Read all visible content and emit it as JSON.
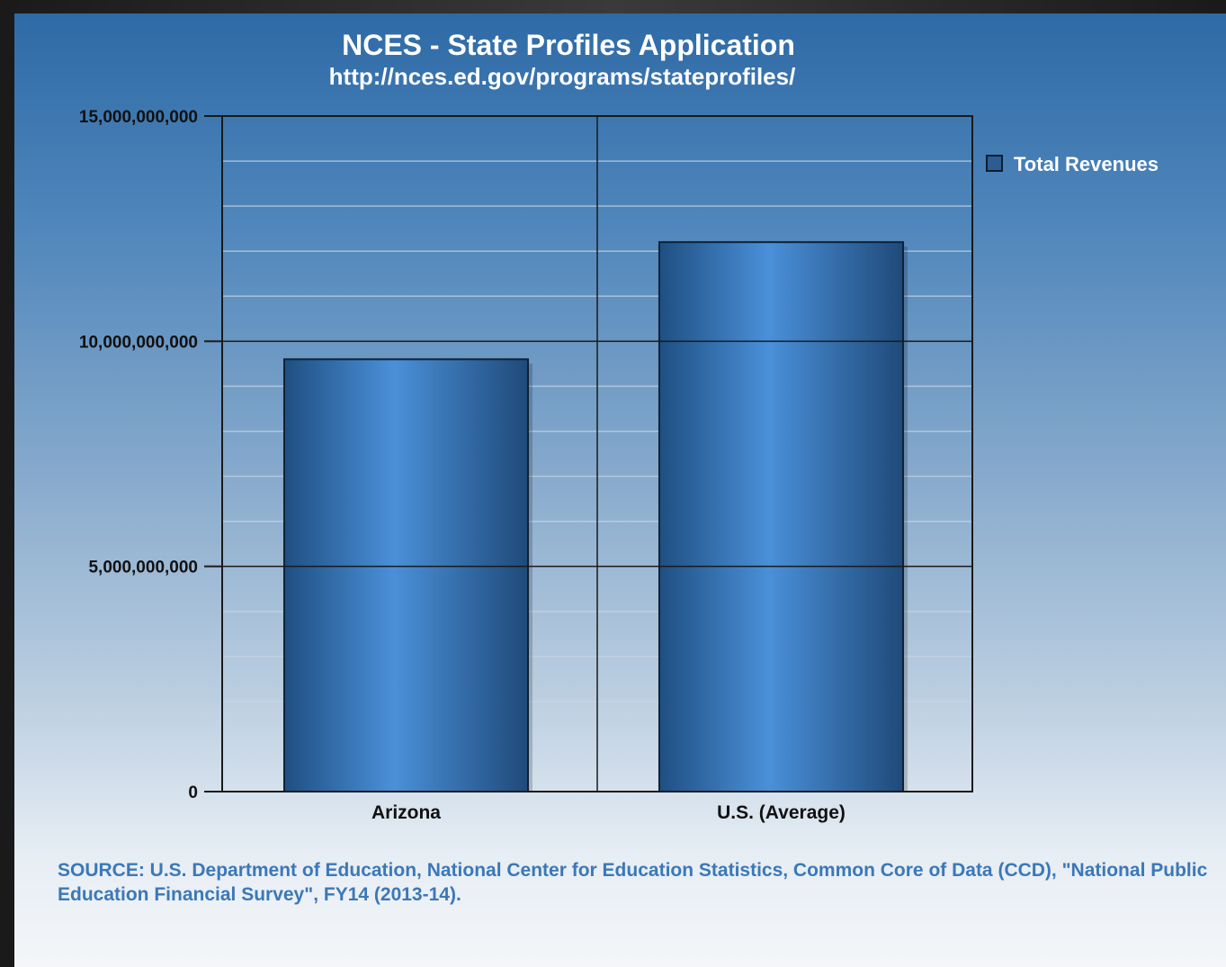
{
  "chart_data": {
    "type": "bar",
    "title": "NCES - State Profiles Application",
    "subtitle": "http://nces.ed.gov/programs/stateprofiles/",
    "categories": [
      "Arizona",
      "U.S. (Average)"
    ],
    "series": [
      {
        "name": "Total Revenues",
        "values": [
          9600000000,
          12200000000
        ]
      }
    ],
    "xlabel": "",
    "ylabel": "",
    "ylim": [
      0,
      15000000000
    ],
    "y_ticks": [
      0,
      5000000000,
      10000000000,
      15000000000
    ],
    "y_tick_labels": [
      "0",
      "5,000,000,000",
      "10,000,000,000",
      "15,000,000,000"
    ],
    "grid": true,
    "legend_position": "right",
    "colors": {
      "bar_light": "#4a90d9",
      "bar_dark": "#1f4f82",
      "axis": "#1a1a1a",
      "grid_minor": "#c9d6e3"
    }
  },
  "source": "SOURCE: U.S. Department of Education, National Center for Education Statistics, Common Core of Data (CCD), \"National Public Education Financial Survey\", FY14 (2013-14)."
}
